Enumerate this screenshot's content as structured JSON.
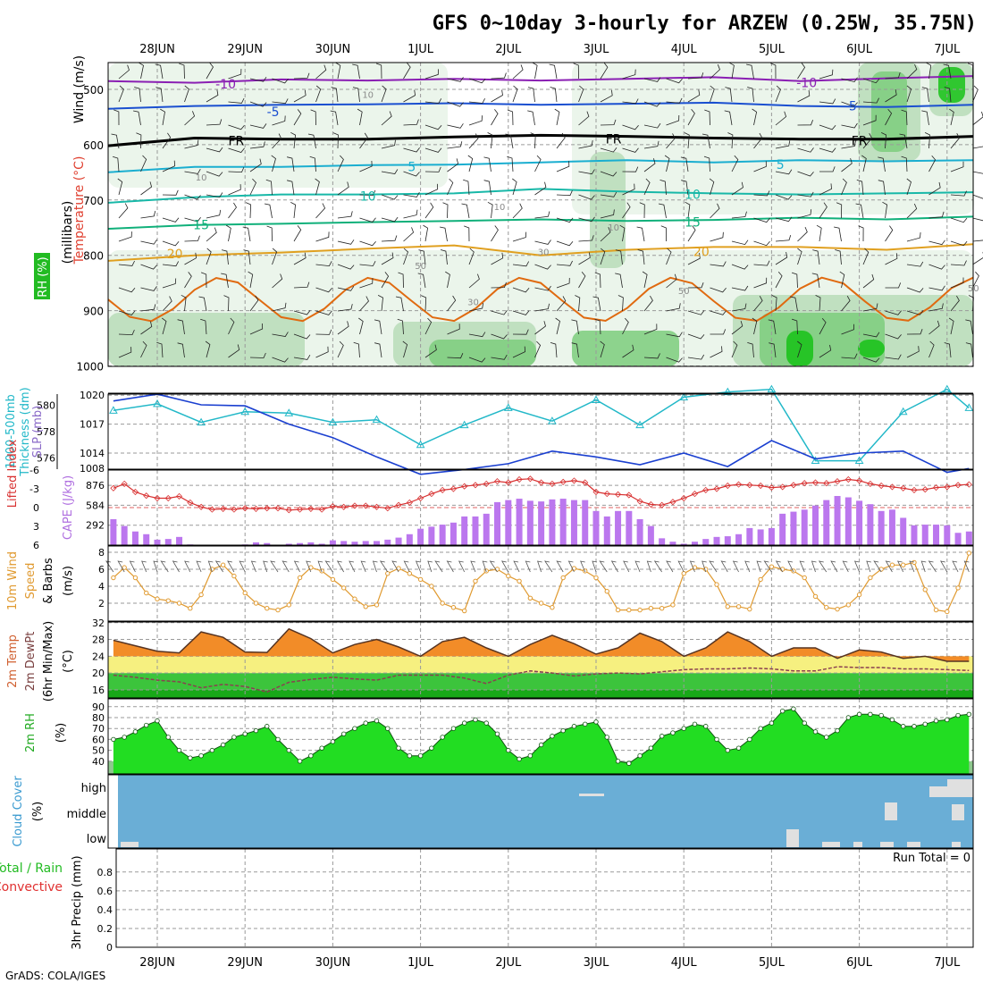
{
  "header": {
    "title": "GFS 0~10day 3-hourly for ARZEW (0.25W, 35.75N)",
    "credit": "GrADS: COLA/IGES"
  },
  "colors": {
    "rh_low": "#e8f3e8",
    "rh_mid": "#b9dcb9",
    "rh_high": "#7dcc7d",
    "rh_vhigh": "#16c216",
    "temp_neg10": "#8a1fb3",
    "temp_neg5": "#1a4fd0",
    "temp_fr": "#000000",
    "temp_5": "#1aaed0",
    "temp_10": "#18b8a8",
    "temp_15": "#10b07a",
    "temp_20": "#e0a020",
    "temp_25": "#e06a10",
    "slp": "#1a3fd0",
    "thickness": "#22b8c8",
    "lifted_index": "#d83030",
    "cape": "#bb77ee",
    "wind10m": "#e09a30",
    "temp2m_fill": "#f28c28",
    "temp2m_high": "#e85a10",
    "dewpt": "#8a4050",
    "band_yellow": "#f6f080",
    "band_green1": "#3cc43c",
    "band_green2": "#18a818",
    "rh2m_fill": "#22dd22",
    "cloud_bg": "#6aaed6",
    "cloud_cell": "#e0e0e0"
  },
  "chart_data": [
    {
      "type": "heatmap",
      "panel": "upper-air",
      "ylabel_lines": [
        "Wind (m/s)",
        "Temperature (°C)",
        "RH (%)",
        "(millibars)"
      ],
      "ylabel_parts": {
        "wind": "Wind (m/s)",
        "temp": "Temperature (°C)",
        "rh": "RH (%)",
        "mb": "(millibars)"
      },
      "y_ticks": [
        500,
        600,
        700,
        800,
        900,
        1000
      ],
      "ylim": [
        1000,
        450
      ],
      "x_ticks": [
        "28JUN",
        "29JUN",
        "30JUN",
        "1JUL",
        "2JUL",
        "3JUL",
        "4JUL",
        "5JUL",
        "6JUL",
        "7JUL"
      ],
      "xlim_days": [
        -0.55,
        9.3
      ],
      "isotherms": [
        {
          "label": "-10",
          "color_key": "temp_neg10",
          "p": [
            485,
            488,
            482,
            484,
            481,
            484,
            481,
            478,
            485,
            480,
            476
          ]
        },
        {
          "label": "-5",
          "color_key": "temp_neg5",
          "p": [
            535,
            530,
            528,
            527,
            525,
            528,
            526,
            524,
            530,
            532,
            528
          ]
        },
        {
          "label": "FR",
          "color_key": "temp_fr",
          "p": [
            602,
            588,
            590,
            590,
            586,
            583,
            585,
            588,
            590,
            590,
            585
          ]
        },
        {
          "label": "5",
          "color_key": "temp_5",
          "p": [
            650,
            640,
            640,
            637,
            636,
            632,
            628,
            632,
            628,
            630,
            628
          ]
        },
        {
          "label": "10",
          "color_key": "temp_10",
          "p": [
            705,
            695,
            690,
            690,
            688,
            680,
            685,
            688,
            690,
            688,
            686
          ]
        },
        {
          "label": "15",
          "color_key": "temp_15",
          "p": [
            752,
            745,
            743,
            740,
            738,
            735,
            738,
            736,
            732,
            735,
            730
          ]
        },
        {
          "label": "20",
          "color_key": "temp_20",
          "p": [
            810,
            800,
            795,
            788,
            782,
            800,
            790,
            785,
            785,
            790,
            780
          ]
        }
      ],
      "isotherm_labels": [
        "-10",
        "-10",
        "-5",
        "-5",
        "FR",
        "FR",
        "FR",
        "5",
        "5",
        "10",
        "10",
        "15",
        "15",
        "20",
        "20"
      ],
      "rh_labels": [
        "10",
        "10",
        "10",
        "10",
        "30",
        "30",
        "50",
        "50",
        "50"
      ]
    },
    {
      "type": "line",
      "panel": "thickness-slp",
      "ylabel_left": "1000-500mb Thickness (dm)",
      "ylabel_left_lines": [
        "1000-500mb",
        "Thickness (dm)"
      ],
      "ylabel_right": "SLP (mb)",
      "left_ticks": [
        576,
        578,
        580
      ],
      "right_ticks": [
        1014,
        1017,
        1020
      ],
      "bottom_label": "1008",
      "series": [
        {
          "name": "1000-500mb Thickness (dm)",
          "axis": "left",
          "x_days": [
            -0.5,
            0,
            0.5,
            1,
            1.5,
            2,
            2.5,
            3,
            3.5,
            4,
            4.5,
            5,
            5.5,
            6,
            6.5,
            7,
            7.5,
            8,
            8.5,
            9,
            9.25
          ],
          "values": [
            579.6,
            580.1,
            578.7,
            579.5,
            579.4,
            578.7,
            578.9,
            577.0,
            578.5,
            579.8,
            578.8,
            580.4,
            578.5,
            580.6,
            581.0,
            581.2,
            575.8,
            575.8,
            579.5,
            581.2,
            579.8
          ]
        },
        {
          "name": "SLP (mb)",
          "axis": "right",
          "x_days": [
            -0.5,
            0,
            0.5,
            1,
            1.5,
            2,
            2.5,
            3,
            3.5,
            4,
            4.5,
            5,
            5.5,
            6,
            6.5,
            7,
            7.5,
            8,
            8.5,
            9,
            9.25
          ],
          "values": [
            1019.4,
            1020.1,
            1019.0,
            1018.9,
            1017.0,
            1015.6,
            1013.6,
            1011.8,
            1012.3,
            1012.9,
            1014.2,
            1013.6,
            1012.8,
            1014.0,
            1012.6,
            1015.3,
            1013.4,
            1014.0,
            1014.2,
            1012.0,
            1012.4
          ]
        }
      ]
    },
    {
      "type": "bar",
      "panel": "cape-li",
      "ylabel_left": "Lifted Index",
      "ylabel_right": "CAPE (J/kg)",
      "left_ticks": [
        "-6",
        "-3",
        "0",
        "3",
        "6"
      ],
      "right_ticks": [
        292,
        584,
        876
      ],
      "x_days": [
        -0.5,
        -0.375,
        -0.25,
        -0.125,
        0,
        0.125,
        0.25,
        0.375,
        0.5,
        0.625,
        0.75,
        0.875,
        1,
        1.125,
        1.25,
        1.375,
        1.5,
        1.625,
        1.75,
        1.875,
        2,
        2.125,
        2.25,
        2.375,
        2.5,
        2.625,
        2.75,
        2.875,
        3,
        3.125,
        3.25,
        3.375,
        3.5,
        3.625,
        3.75,
        3.875,
        4,
        4.125,
        4.25,
        4.375,
        4.5,
        4.625,
        4.75,
        4.875,
        5,
        5.125,
        5.25,
        5.375,
        5.5,
        5.625,
        5.75,
        5.875,
        6,
        6.125,
        6.25,
        6.375,
        6.5,
        6.625,
        6.75,
        6.875,
        7,
        7.125,
        7.25,
        7.375,
        7.5,
        7.625,
        7.75,
        7.875,
        8,
        8.125,
        8.25,
        8.375,
        8.5,
        8.625,
        8.75,
        8.875,
        9,
        9.125,
        9.25
      ],
      "cape_values": [
        380,
        280,
        200,
        160,
        80,
        90,
        120,
        10,
        0,
        0,
        0,
        0,
        10,
        40,
        30,
        0,
        20,
        30,
        40,
        20,
        70,
        60,
        50,
        60,
        60,
        80,
        110,
        160,
        240,
        270,
        300,
        330,
        420,
        420,
        460,
        630,
        660,
        680,
        650,
        640,
        670,
        680,
        660,
        660,
        500,
        420,
        500,
        500,
        380,
        280,
        100,
        50,
        20,
        50,
        90,
        120,
        130,
        160,
        250,
        230,
        250,
        460,
        490,
        520,
        580,
        660,
        720,
        700,
        650,
        600,
        500,
        520,
        400,
        290,
        300,
        300,
        290,
        180,
        200
      ],
      "li_values": [
        -3.1,
        -3.8,
        -2.5,
        -1.9,
        -1.5,
        -1.5,
        -1.8,
        -0.8,
        -0.1,
        0.3,
        0.2,
        0.3,
        0.1,
        0.2,
        0.1,
        0.1,
        0.4,
        0.3,
        0.2,
        0.3,
        -0.2,
        -0.1,
        -0.3,
        -0.3,
        -0.1,
        0.1,
        -0.4,
        -0.8,
        -1.5,
        -2.2,
        -2.8,
        -3.0,
        -3.4,
        -3.6,
        -3.8,
        -4.2,
        -4.0,
        -4.5,
        -4.6,
        -4.0,
        -3.8,
        -4.1,
        -4.3,
        -4.0,
        -2.5,
        -2.2,
        -2.1,
        -2.0,
        -1.0,
        -0.5,
        -0.4,
        -0.9,
        -1.5,
        -2.2,
        -2.8,
        -3.0,
        -3.5,
        -3.7,
        -3.6,
        -3.5,
        -3.2,
        -3.3,
        -3.6,
        -3.9,
        -4.0,
        -3.9,
        -4.2,
        -4.5,
        -4.3,
        -3.8,
        -3.5,
        -3.3,
        -3.1,
        -2.8,
        -2.9,
        -3.2,
        -3.3,
        -3.6,
        -3.7
      ]
    },
    {
      "type": "line",
      "panel": "wind10m",
      "ylabel_lines": [
        "10m Wind",
        "Speed",
        "& Barbs",
        "(m/s)"
      ],
      "ylabel_parts": {
        "line1": "10m Wind",
        "line2": "Speed",
        "line3": "& Barbs",
        "line4": "(m/s)"
      },
      "y_ticks": [
        2,
        4,
        6,
        8
      ],
      "ylim": [
        0,
        8.5
      ],
      "x_days": [
        -0.5,
        -0.375,
        -0.25,
        -0.125,
        0,
        0.125,
        0.25,
        0.375,
        0.5,
        0.625,
        0.75,
        0.875,
        1,
        1.125,
        1.25,
        1.375,
        1.5,
        1.625,
        1.75,
        1.875,
        2,
        2.125,
        2.25,
        2.375,
        2.5,
        2.625,
        2.75,
        2.875,
        3,
        3.125,
        3.25,
        3.375,
        3.5,
        3.625,
        3.75,
        3.875,
        4,
        4.125,
        4.25,
        4.375,
        4.5,
        4.625,
        4.75,
        4.875,
        5,
        5.125,
        5.25,
        5.375,
        5.5,
        5.625,
        5.75,
        5.875,
        6,
        6.125,
        6.25,
        6.375,
        6.5,
        6.625,
        6.75,
        6.875,
        7,
        7.125,
        7.25,
        7.375,
        7.5,
        7.625,
        7.75,
        7.875,
        8,
        8.125,
        8.25,
        8.375,
        8.5,
        8.625,
        8.75,
        8.875,
        9,
        9.125,
        9.25
      ],
      "values": [
        5.0,
        6.2,
        5.0,
        3.2,
        2.5,
        2.3,
        2.0,
        1.4,
        3.0,
        6.0,
        6.5,
        5.2,
        3.2,
        2.0,
        1.4,
        1.2,
        1.8,
        5.0,
        6.2,
        5.8,
        4.8,
        3.8,
        2.5,
        1.6,
        1.8,
        5.5,
        6.1,
        5.5,
        4.8,
        4.0,
        2.0,
        1.5,
        1.1,
        4.6,
        5.8,
        6.0,
        5.2,
        4.6,
        2.6,
        2.0,
        1.5,
        5.0,
        6.1,
        5.8,
        5.0,
        3.4,
        1.2,
        1.2,
        1.2,
        1.4,
        1.4,
        1.8,
        5.5,
        6.2,
        6.0,
        4.2,
        1.6,
        1.6,
        1.3,
        4.8,
        6.3,
        6.0,
        5.8,
        5.0,
        2.8,
        1.5,
        1.3,
        1.8,
        3.0,
        5.0,
        6.0,
        6.5,
        6.5,
        6.8,
        3.6,
        1.2,
        1.0,
        3.8,
        7.9
      ]
    },
    {
      "type": "area",
      "panel": "temp2m",
      "ylabel_lines": [
        "2m Temp",
        "2m DewPt",
        "(6hr Min/Max)",
        "(°C)"
      ],
      "ylabel_parts": {
        "line1": "2m Temp",
        "line2": "2m DewPt",
        "line3": "(6hr Min/Max)",
        "line4": "(°C)"
      },
      "y_ticks": [
        16,
        20,
        24,
        28,
        32
      ],
      "ylim": [
        14.5,
        33
      ],
      "x_days": [
        -0.5,
        -0.25,
        0,
        0.25,
        0.5,
        0.75,
        1,
        1.25,
        1.5,
        1.75,
        2,
        2.25,
        2.5,
        2.75,
        3,
        3.25,
        3.5,
        3.75,
        4,
        4.25,
        4.5,
        4.75,
        5,
        5.25,
        5.5,
        5.75,
        6,
        6.25,
        6.5,
        6.75,
        7,
        7.25,
        7.5,
        7.75,
        8,
        8.25,
        8.5,
        8.75,
        9,
        9.25
      ],
      "temp_values": [
        27.8,
        26.5,
        25.2,
        24.8,
        29.8,
        28.5,
        25.0,
        24.9,
        30.5,
        28.2,
        24.8,
        26.8,
        28.0,
        26.2,
        24.0,
        27.5,
        28.5,
        26.0,
        24.0,
        26.8,
        29.0,
        27.0,
        24.5,
        26.0,
        29.5,
        27.5,
        24.0,
        26.0,
        29.8,
        27.5,
        24.0,
        26.0,
        26.0,
        23.5,
        25.5,
        25.0,
        23.5,
        24.0,
        22.8,
        22.8
      ],
      "dewpt_values": [
        19.5,
        19.0,
        18.3,
        17.9,
        16.5,
        17.3,
        16.8,
        15.5,
        17.8,
        18.5,
        19.0,
        18.6,
        18.3,
        19.5,
        19.5,
        19.5,
        18.8,
        17.5,
        19.5,
        20.5,
        20.0,
        19.3,
        19.8,
        20.0,
        19.8,
        20.3,
        20.8,
        21.0,
        21.0,
        21.2,
        21.0,
        20.5,
        20.5,
        21.5,
        21.3,
        21.3,
        21.0,
        21.0,
        20.8,
        20.6
      ]
    },
    {
      "type": "area",
      "panel": "rh2m",
      "ylabel": "2m RH (%)",
      "ylabel_parts": {
        "line1": "2m RH",
        "line2": "(%)"
      },
      "y_ticks": [
        40,
        50,
        60,
        70,
        80,
        90
      ],
      "ylim": [
        30,
        92
      ],
      "x_days": [
        -0.5,
        -0.375,
        -0.25,
        -0.125,
        0,
        0.125,
        0.25,
        0.375,
        0.5,
        0.625,
        0.75,
        0.875,
        1,
        1.125,
        1.25,
        1.375,
        1.5,
        1.625,
        1.75,
        1.875,
        2,
        2.125,
        2.25,
        2.375,
        2.5,
        2.625,
        2.75,
        2.875,
        3,
        3.125,
        3.25,
        3.375,
        3.5,
        3.625,
        3.75,
        3.875,
        4,
        4.125,
        4.25,
        4.375,
        4.5,
        4.625,
        4.75,
        4.875,
        5,
        5.125,
        5.25,
        5.375,
        5.5,
        5.625,
        5.75,
        5.875,
        6,
        6.125,
        6.25,
        6.375,
        6.5,
        6.625,
        6.75,
        6.875,
        7,
        7.125,
        7.25,
        7.375,
        7.5,
        7.625,
        7.75,
        7.875,
        8,
        8.125,
        8.25,
        8.375,
        8.5,
        8.625,
        8.75,
        8.875,
        9,
        9.125,
        9.25
      ],
      "values": [
        60,
        62,
        67,
        73,
        77,
        62,
        50,
        43,
        45,
        50,
        55,
        62,
        65,
        68,
        72,
        60,
        50,
        40,
        45,
        52,
        58,
        65,
        70,
        75,
        77,
        70,
        52,
        45,
        45,
        52,
        62,
        70,
        75,
        78,
        75,
        65,
        50,
        42,
        45,
        55,
        63,
        68,
        72,
        74,
        76,
        62,
        40,
        38,
        45,
        52,
        63,
        66,
        70,
        74,
        72,
        60,
        50,
        52,
        60,
        70,
        75,
        86,
        88,
        75,
        67,
        62,
        68,
        80,
        83,
        83,
        82,
        78,
        72,
        72,
        74,
        77,
        78,
        82,
        83
      ]
    },
    {
      "type": "heatmap",
      "panel": "cloud-cover",
      "ylabel": "Cloud Cover (%)",
      "ylabel_parts": {
        "line1": "Cloud Cover",
        "line2": "(%)"
      },
      "levels": [
        "high",
        "middle",
        "low"
      ]
    },
    {
      "type": "bar",
      "panel": "precip",
      "ylabel_left": "Total / Rain Convective",
      "ylabel_left_parts": {
        "total": "Total / Rain",
        "convective": "Convective"
      },
      "ylabel_right": "3hr Precip (mm)",
      "y_ticks": [
        "0",
        "0.2",
        "0.4",
        "0.6",
        "0.8"
      ],
      "ylim": [
        0,
        0.95
      ],
      "values": [],
      "annotation": "Run Total = 0"
    }
  ]
}
